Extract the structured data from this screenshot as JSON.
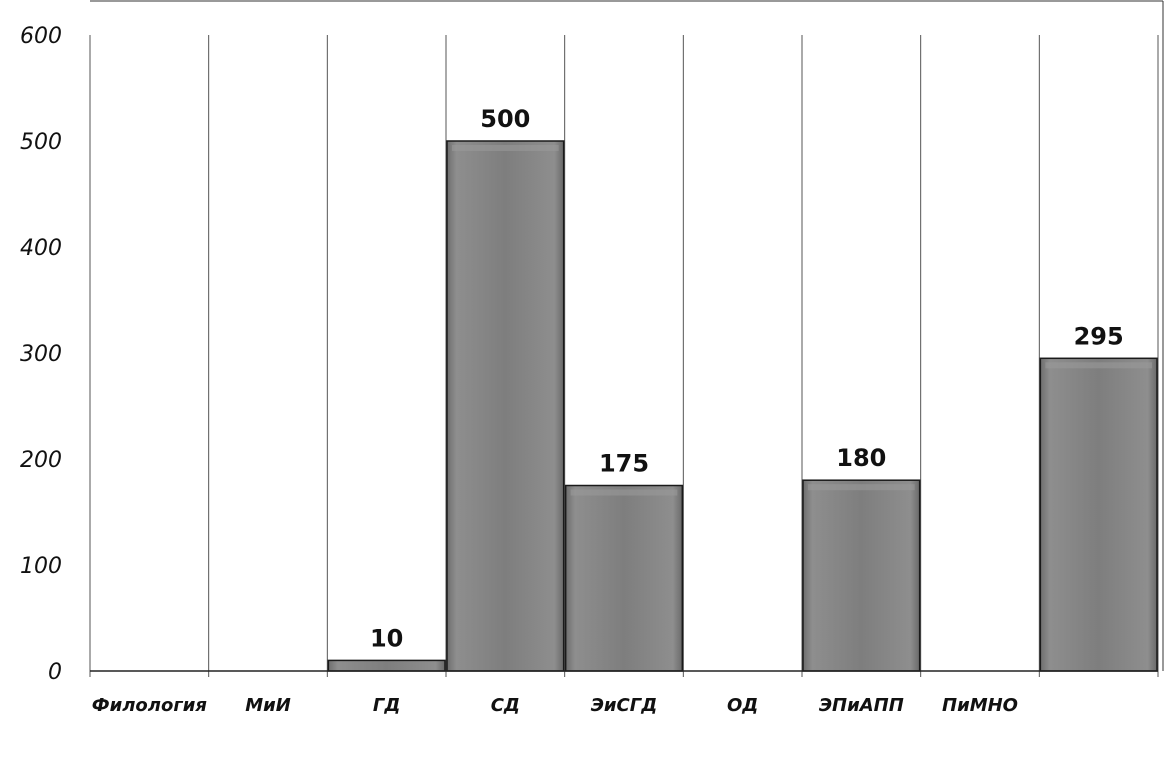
{
  "chart_data": {
    "type": "bar",
    "categories": [
      "Филология",
      "МиИ",
      "ГД",
      "СД",
      "ЭиСГД",
      "ОД",
      "ЭПиАПП",
      "ПиМНО"
    ],
    "values": [
      null,
      10,
      500,
      175,
      null,
      180,
      null,
      295
    ],
    "data_labels": [
      "",
      "10",
      "500",
      "175",
      "",
      "180",
      "",
      "295"
    ],
    "yticks": [
      "0",
      "100",
      "200",
      "300",
      "400",
      "500",
      "600"
    ],
    "ylim": [
      0,
      600
    ],
    "title": "",
    "xlabel": "",
    "ylabel": "",
    "grid": "vertical category gridlines",
    "legend": "none",
    "colors": {
      "bar_fill": "#7d7d7d",
      "bar_highlight": "#9a9a9a",
      "bar_edge": "#1a1a1a",
      "grid": "#555555",
      "text": "#111111"
    }
  }
}
